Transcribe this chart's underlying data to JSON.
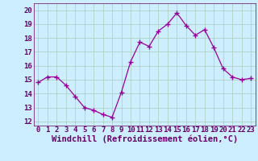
{
  "x": [
    0,
    1,
    2,
    3,
    4,
    5,
    6,
    7,
    8,
    9,
    10,
    11,
    12,
    13,
    14,
    15,
    16,
    17,
    18,
    19,
    20,
    21,
    22,
    23
  ],
  "y": [
    14.8,
    15.2,
    15.2,
    14.6,
    13.8,
    13.0,
    12.8,
    12.5,
    12.3,
    14.1,
    16.3,
    17.7,
    17.4,
    18.5,
    19.0,
    19.8,
    18.9,
    18.2,
    18.6,
    17.3,
    15.8,
    15.2,
    15.0,
    15.1
  ],
  "line_color": "#990099",
  "marker": "+",
  "marker_size": 4,
  "bg_color": "#cceeff",
  "grid_color": "#aaccbb",
  "xlabel": "Windchill (Refroidissement éolien,°C)",
  "xlabel_color": "#660066",
  "ylabel_ticks": [
    12,
    13,
    14,
    15,
    16,
    17,
    18,
    19,
    20
  ],
  "xtick_labels": [
    "0",
    "1",
    "2",
    "3",
    "4",
    "5",
    "6",
    "7",
    "8",
    "9",
    "10",
    "11",
    "12",
    "13",
    "14",
    "15",
    "16",
    "17",
    "18",
    "19",
    "20",
    "21",
    "22",
    "23"
  ],
  "ylim": [
    11.7,
    20.5
  ],
  "xlim": [
    -0.5,
    23.5
  ],
  "tick_color": "#660066",
  "tick_fontsize": 6.5,
  "xlabel_fontsize": 7.5,
  "line_width": 0.9
}
